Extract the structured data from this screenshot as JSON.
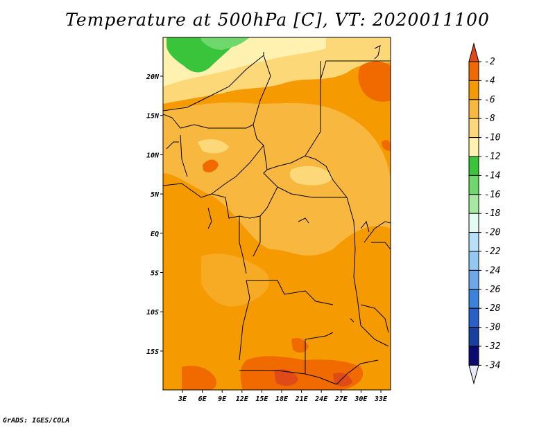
{
  "title": "Temperature at 500hPa [C], VT: 2020011100",
  "credit": "GrADS: IGES/COLA",
  "chart_data": {
    "type": "heatmap",
    "x_ticks": [
      "3E",
      "6E",
      "9E",
      "12E",
      "15E",
      "18E",
      "21E",
      "24E",
      "27E",
      "30E",
      "33E"
    ],
    "y_ticks": [
      "20N",
      "15N",
      "10N",
      "5N",
      "EQ",
      "5S",
      "10S",
      "15S"
    ],
    "colorbar": {
      "levels": [
        "-2",
        "-4",
        "-6",
        "-8",
        "-10",
        "-12",
        "-14",
        "-16",
        "-18",
        "-20",
        "-22",
        "-24",
        "-26",
        "-28",
        "-30",
        "-32",
        "-34"
      ],
      "colors": [
        "#e04a18",
        "#f06a00",
        "#f59a00",
        "#f8b840",
        "#fdd878",
        "#fff2b0",
        "#39c43c",
        "#6ed86c",
        "#a6eaa0",
        "#e4fbf4",
        "#b8e0f8",
        "#92c8f2",
        "#6ca8ea",
        "#3c82dc",
        "#2860c8",
        "#1840a0",
        "#0a0a70"
      ],
      "top_arrow_color": "#e04a18",
      "bottom_arrow_color": "#e8e8f8"
    }
  }
}
